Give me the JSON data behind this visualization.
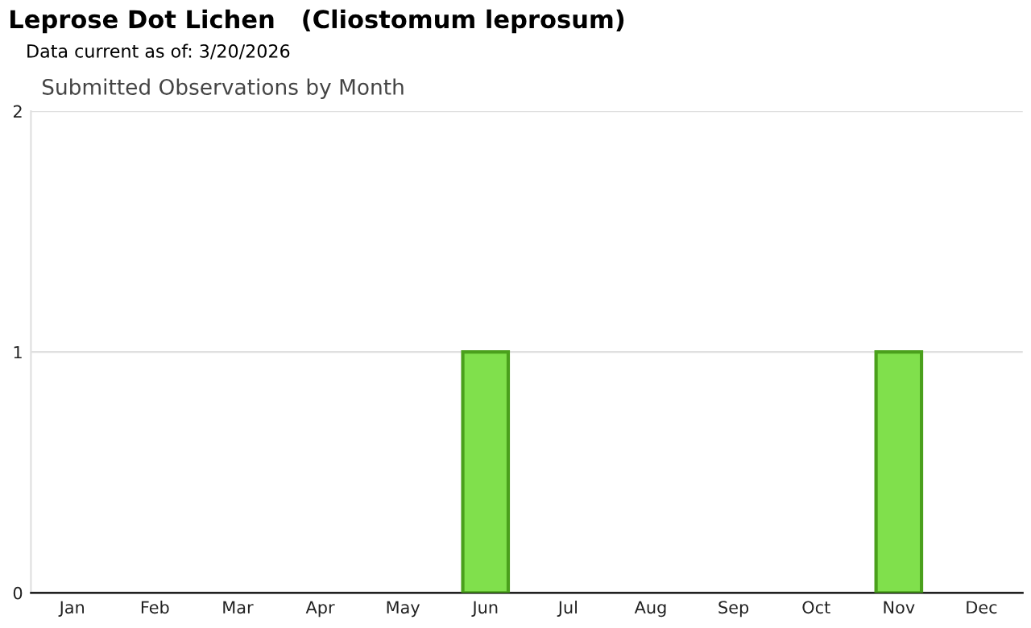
{
  "chart_data": {
    "type": "bar",
    "title": "Leprose Dot Lichen   (Cliostomum leprosum)",
    "subtitle": "Submitted Observations by Month",
    "annotations": [
      "Data current as of: 3/20/2026"
    ],
    "categories": [
      "Jan",
      "Feb",
      "Mar",
      "Apr",
      "May",
      "Jun",
      "Jul",
      "Aug",
      "Sep",
      "Oct",
      "Nov",
      "Dec"
    ],
    "values": [
      0,
      0,
      0,
      0,
      0,
      1,
      0,
      0,
      0,
      0,
      1,
      0
    ],
    "color": "#80e04c",
    "ylim": [
      0,
      2
    ],
    "yticks": [
      0,
      1,
      2
    ],
    "grid": "y"
  }
}
